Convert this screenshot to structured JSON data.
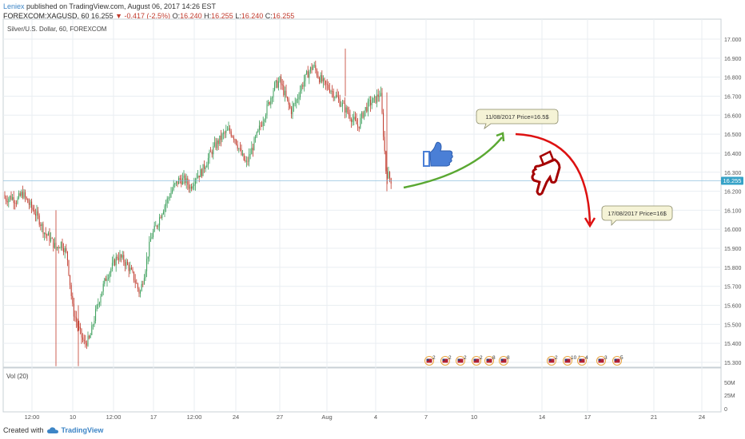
{
  "header": {
    "author": "Leniex",
    "published_text": "published on TradingView.com, August 06, 2017 14:26 EST",
    "symbol_line": "FOREXCOM:XAGUSD, 60",
    "last": "16.255",
    "change": "-0.417 (-2.5%)",
    "o_label": "O:",
    "o_value": "16.240",
    "h_label": "H:",
    "h_value": "16.255",
    "l_label": "L:",
    "l_value": "16.240",
    "c_label": "C:",
    "c_value": "16.255"
  },
  "footer": {
    "created_with": "Created with",
    "brand": "TradingView"
  },
  "colors": {
    "up": "#3a9e5a",
    "down": "#c0392b",
    "grid": "#e9eef2",
    "green_arrow": "#5aa832",
    "red_arrow": "#dd1111",
    "thumb_up": "#4a7fd6",
    "thumb_down": "#a50000",
    "callout_bg": "#f5f3d6",
    "price_tag": "#36a2c7"
  },
  "chart_data": {
    "type": "candlestick",
    "title": "Silver/U.S. Dollar, 60, FOREXCOM",
    "y_ticks": [
      "17.000",
      "16.900",
      "16.800",
      "16.700",
      "16.600",
      "16.500",
      "16.400",
      "16.300",
      "16.200",
      "16.100",
      "16.000",
      "15.900",
      "15.800",
      "15.700",
      "15.600",
      "15.500",
      "15.400",
      "15.300"
    ],
    "ylim": [
      15.28,
      17.03
    ],
    "x_ticks": [
      "12:00",
      "10",
      "12:00",
      "17",
      "12:00",
      "24",
      "27",
      "Aug",
      "4",
      "7",
      "10",
      "14",
      "17",
      "21",
      "24"
    ],
    "current_price": "16.255",
    "volume_panel": {
      "label": "Vol (20)",
      "y_ticks": [
        "50M",
        "25M",
        "0"
      ]
    },
    "series": [
      {
        "name": "XAGUSD",
        "x": [
          0,
          7,
          14,
          21,
          28,
          35,
          42,
          49,
          56,
          63,
          70,
          77,
          84,
          91,
          98,
          105,
          112,
          119,
          126,
          133,
          140,
          147,
          154,
          161,
          168,
          175,
          182,
          189,
          196,
          203,
          210,
          217,
          224,
          231,
          238,
          245,
          252,
          259,
          266,
          273,
          280,
          287,
          294,
          301,
          308,
          315,
          322,
          329,
          336,
          343,
          350,
          357,
          364,
          371,
          378,
          385,
          392,
          399,
          406,
          413,
          420,
          427,
          434,
          441,
          448,
          455,
          462,
          469,
          476,
          483,
          490
        ],
        "close": [
          16.18,
          16.16,
          16.17,
          16.15,
          16.19,
          16.14,
          16.1,
          16.05,
          15.98,
          15.95,
          15.9,
          15.93,
          15.86,
          15.58,
          15.48,
          15.4,
          15.42,
          15.55,
          15.66,
          15.75,
          15.8,
          15.86,
          15.84,
          15.8,
          15.74,
          15.66,
          15.8,
          15.96,
          16.02,
          16.1,
          16.16,
          16.22,
          16.26,
          16.26,
          16.22,
          16.28,
          16.3,
          16.36,
          16.42,
          16.46,
          16.5,
          16.52,
          16.48,
          16.4,
          16.34,
          16.42,
          16.5,
          16.58,
          16.66,
          16.75,
          16.78,
          16.7,
          16.62,
          16.68,
          16.76,
          16.82,
          16.86,
          16.8,
          16.76,
          16.74,
          16.7,
          16.66,
          16.62,
          16.58,
          16.54,
          16.62,
          16.66,
          16.68,
          16.72,
          16.3,
          16.255
        ]
      }
    ],
    "markers": [
      {
        "type": "callout",
        "text": "11/08/2017 Price=16.5$"
      },
      {
        "type": "callout",
        "text": "17/08/2017 Price=16$"
      }
    ],
    "events": [
      {
        "count": "2"
      },
      {
        "count": "2"
      },
      {
        "count": "2"
      },
      {
        "count": "2"
      },
      {
        "count": "8"
      },
      {
        "count": "8"
      },
      {
        "count": "2"
      },
      {
        "count": "10 1"
      },
      {
        "count": "4"
      },
      {
        "count": "3"
      },
      {
        "count": "5"
      }
    ]
  }
}
